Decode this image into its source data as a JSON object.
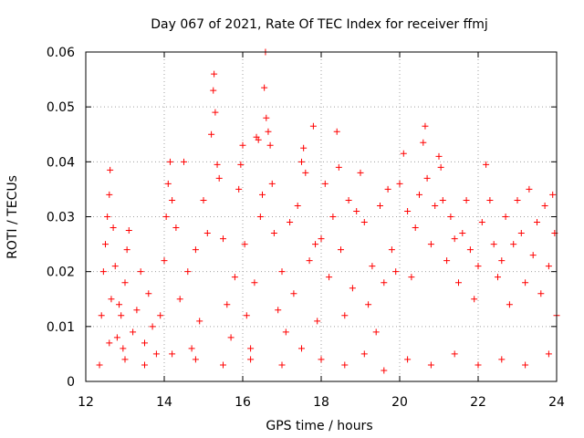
{
  "chart_data": {
    "type": "scatter",
    "title": "Day 067 of 2021, Rate Of TEC Index for receiver ffmj",
    "xlabel": "GPS time / hours",
    "ylabel": "ROTI / TECUs",
    "xlim": [
      12,
      24
    ],
    "ylim": [
      0,
      0.06
    ],
    "xticks": [
      12,
      14,
      16,
      18,
      20,
      22,
      24
    ],
    "xtick_labels": [
      "12",
      "14",
      "16",
      "18",
      "20",
      "22",
      "24"
    ],
    "yticks": [
      0,
      0.01,
      0.02,
      0.03,
      0.04,
      0.05,
      0.06
    ],
    "ytick_labels": [
      "0",
      "0.01",
      "0.02",
      "0.03",
      "0.04",
      "0.05",
      "0.06"
    ],
    "grid": true,
    "marker": "plus",
    "color": "#ff0000",
    "series": [
      {
        "name": "ROTI",
        "points": [
          [
            12.35,
            0.003
          ],
          [
            12.4,
            0.012
          ],
          [
            12.45,
            0.02
          ],
          [
            12.5,
            0.025
          ],
          [
            12.55,
            0.03
          ],
          [
            12.6,
            0.034
          ],
          [
            12.62,
            0.0385
          ],
          [
            12.65,
            0.015
          ],
          [
            12.7,
            0.028
          ],
          [
            12.75,
            0.021
          ],
          [
            12.8,
            0.008
          ],
          [
            12.85,
            0.014
          ],
          [
            12.9,
            0.012
          ],
          [
            12.95,
            0.006
          ],
          [
            13.0,
            0.018
          ],
          [
            13.05,
            0.024
          ],
          [
            13.1,
            0.0275
          ],
          [
            13.2,
            0.009
          ],
          [
            13.3,
            0.013
          ],
          [
            13.4,
            0.02
          ],
          [
            13.5,
            0.007
          ],
          [
            13.6,
            0.016
          ],
          [
            13.7,
            0.01
          ],
          [
            13.8,
            0.005
          ],
          [
            13.9,
            0.012
          ],
          [
            14.0,
            0.022
          ],
          [
            14.05,
            0.03
          ],
          [
            14.1,
            0.036
          ],
          [
            14.15,
            0.04
          ],
          [
            14.2,
            0.033
          ],
          [
            14.3,
            0.028
          ],
          [
            14.4,
            0.015
          ],
          [
            14.5,
            0.04
          ],
          [
            14.6,
            0.02
          ],
          [
            14.7,
            0.006
          ],
          [
            14.8,
            0.024
          ],
          [
            14.9,
            0.011
          ],
          [
            15.0,
            0.033
          ],
          [
            15.1,
            0.027
          ],
          [
            15.2,
            0.045
          ],
          [
            15.25,
            0.053
          ],
          [
            15.27,
            0.056
          ],
          [
            15.3,
            0.049
          ],
          [
            15.35,
            0.0395
          ],
          [
            15.4,
            0.037
          ],
          [
            15.5,
            0.026
          ],
          [
            15.6,
            0.014
          ],
          [
            15.7,
            0.008
          ],
          [
            15.8,
            0.019
          ],
          [
            15.9,
            0.035
          ],
          [
            15.95,
            0.0395
          ],
          [
            16.0,
            0.043
          ],
          [
            16.05,
            0.025
          ],
          [
            16.1,
            0.012
          ],
          [
            16.2,
            0.006
          ],
          [
            16.3,
            0.018
          ],
          [
            16.35,
            0.0445
          ],
          [
            16.4,
            0.044
          ],
          [
            16.45,
            0.03
          ],
          [
            16.5,
            0.034
          ],
          [
            16.55,
            0.0535
          ],
          [
            16.58,
            0.06
          ],
          [
            16.6,
            0.048
          ],
          [
            16.65,
            0.0455
          ],
          [
            16.7,
            0.043
          ],
          [
            16.75,
            0.036
          ],
          [
            16.8,
            0.027
          ],
          [
            16.9,
            0.013
          ],
          [
            17.0,
            0.02
          ],
          [
            17.1,
            0.009
          ],
          [
            17.2,
            0.029
          ],
          [
            17.3,
            0.016
          ],
          [
            17.4,
            0.032
          ],
          [
            17.5,
            0.04
          ],
          [
            17.55,
            0.0425
          ],
          [
            17.6,
            0.038
          ],
          [
            17.7,
            0.022
          ],
          [
            17.8,
            0.0465
          ],
          [
            17.85,
            0.025
          ],
          [
            17.9,
            0.011
          ],
          [
            18.0,
            0.026
          ],
          [
            18.1,
            0.036
          ],
          [
            18.2,
            0.019
          ],
          [
            18.3,
            0.03
          ],
          [
            18.4,
            0.0455
          ],
          [
            18.45,
            0.039
          ],
          [
            18.5,
            0.024
          ],
          [
            18.6,
            0.012
          ],
          [
            18.7,
            0.033
          ],
          [
            18.8,
            0.017
          ],
          [
            18.9,
            0.031
          ],
          [
            19.0,
            0.038
          ],
          [
            19.1,
            0.029
          ],
          [
            19.2,
            0.014
          ],
          [
            19.3,
            0.021
          ],
          [
            19.4,
            0.009
          ],
          [
            19.5,
            0.032
          ],
          [
            19.6,
            0.018
          ],
          [
            19.7,
            0.035
          ],
          [
            19.8,
            0.024
          ],
          [
            19.9,
            0.02
          ],
          [
            20.0,
            0.036
          ],
          [
            20.1,
            0.0415
          ],
          [
            20.2,
            0.031
          ],
          [
            20.3,
            0.019
          ],
          [
            20.4,
            0.028
          ],
          [
            20.5,
            0.034
          ],
          [
            20.6,
            0.0435
          ],
          [
            20.65,
            0.0465
          ],
          [
            20.7,
            0.037
          ],
          [
            20.8,
            0.025
          ],
          [
            20.9,
            0.032
          ],
          [
            21.0,
            0.041
          ],
          [
            21.05,
            0.039
          ],
          [
            21.1,
            0.033
          ],
          [
            21.2,
            0.022
          ],
          [
            21.3,
            0.03
          ],
          [
            21.4,
            0.026
          ],
          [
            21.5,
            0.018
          ],
          [
            21.6,
            0.027
          ],
          [
            21.7,
            0.033
          ],
          [
            21.8,
            0.024
          ],
          [
            21.9,
            0.015
          ],
          [
            22.0,
            0.021
          ],
          [
            22.1,
            0.029
          ],
          [
            22.2,
            0.0395
          ],
          [
            22.3,
            0.033
          ],
          [
            22.4,
            0.025
          ],
          [
            22.5,
            0.019
          ],
          [
            22.6,
            0.022
          ],
          [
            22.7,
            0.03
          ],
          [
            22.8,
            0.014
          ],
          [
            22.9,
            0.025
          ],
          [
            23.0,
            0.033
          ],
          [
            23.1,
            0.027
          ],
          [
            23.2,
            0.018
          ],
          [
            23.3,
            0.035
          ],
          [
            23.4,
            0.023
          ],
          [
            23.5,
            0.029
          ],
          [
            23.6,
            0.016
          ],
          [
            23.7,
            0.032
          ],
          [
            23.8,
            0.021
          ],
          [
            23.9,
            0.034
          ],
          [
            23.95,
            0.027
          ],
          [
            24.0,
            0.012
          ],
          [
            12.6,
            0.007
          ],
          [
            13.0,
            0.004
          ],
          [
            13.5,
            0.003
          ],
          [
            14.2,
            0.005
          ],
          [
            14.8,
            0.004
          ],
          [
            15.5,
            0.003
          ],
          [
            16.2,
            0.004
          ],
          [
            17.0,
            0.003
          ],
          [
            17.5,
            0.006
          ],
          [
            18.0,
            0.004
          ],
          [
            18.6,
            0.003
          ],
          [
            19.1,
            0.005
          ],
          [
            19.6,
            0.002
          ],
          [
            20.2,
            0.004
          ],
          [
            20.8,
            0.003
          ],
          [
            21.4,
            0.005
          ],
          [
            22.0,
            0.003
          ],
          [
            22.6,
            0.004
          ],
          [
            23.2,
            0.003
          ],
          [
            23.8,
            0.005
          ]
        ]
      }
    ]
  }
}
